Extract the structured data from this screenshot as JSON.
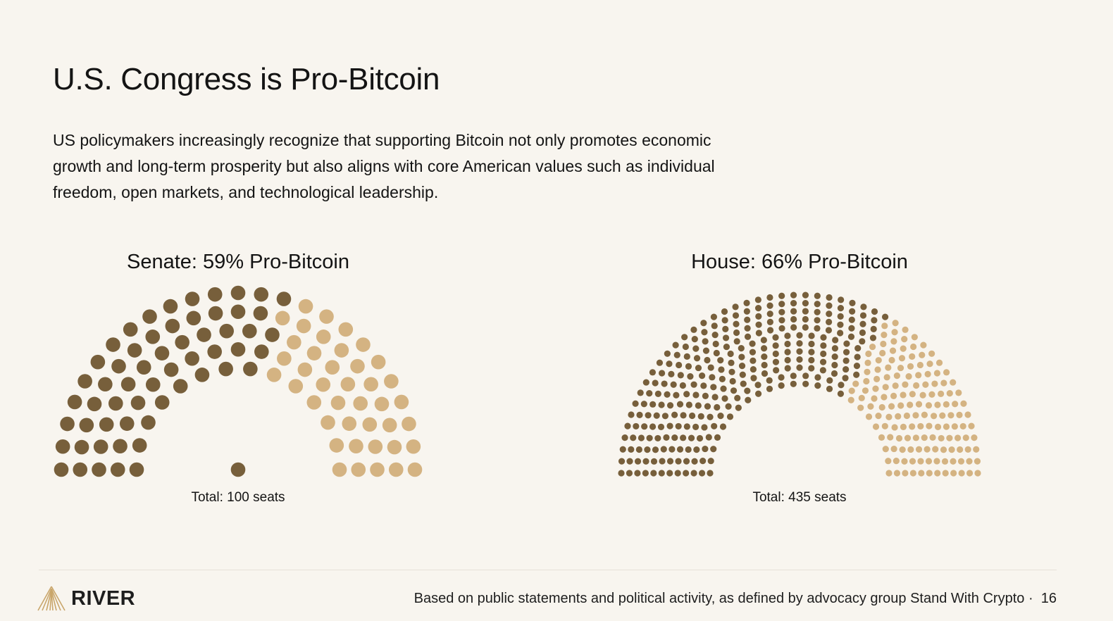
{
  "title": "U.S. Congress is Pro-Bitcoin",
  "subtitle": "US policymakers increasingly recognize that supporting Bitcoin not only promotes economic growth and long-term prosperity but also aligns with core American values such as individual freedom, open markets, and technological leadership.",
  "colors": {
    "pro": "#775f3b",
    "other": "#d4b382",
    "background": "#f8f5ef"
  },
  "chart_data": [
    {
      "type": "parliament",
      "title": "Senate: 59% Pro-Bitcoin",
      "total_label": "Total: 100 seats",
      "total_seats": 100,
      "pro_seats": 59,
      "center_seats": 1,
      "rows": 5
    },
    {
      "type": "parliament",
      "title": "House: 66% Pro-Bitcoin",
      "total_label": "Total: 435 seats",
      "total_seats": 435,
      "pro_seats": 287,
      "center_seats": 0,
      "rows": 12
    }
  ],
  "footer": {
    "logo_text": "RIVER",
    "note": "Based on public statements and political activity, as defined by advocacy group Stand With Crypto",
    "separator": "·",
    "page_number": "16"
  }
}
